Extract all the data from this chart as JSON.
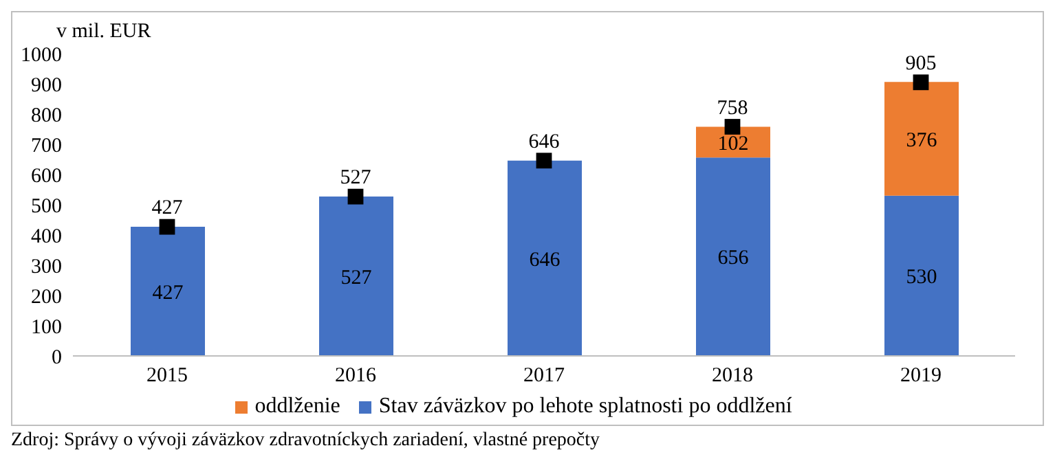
{
  "chart_data": {
    "type": "bar",
    "ylabel": "v mil. EUR",
    "categories": [
      "2015",
      "2016",
      "2017",
      "2018",
      "2019"
    ],
    "stacked": true,
    "data_labels": true,
    "legend": "bottom",
    "grid": false,
    "ylim": [
      0,
      1000
    ],
    "yticks": [
      0,
      100,
      200,
      300,
      400,
      500,
      600,
      700,
      800,
      900,
      1000
    ],
    "series": [
      {
        "name": "Stav záväzkov po lehote splatnosti po oddlžení",
        "color": "#4472c4",
        "values": [
          427,
          527,
          646,
          656,
          530
        ]
      },
      {
        "name": "oddlženie",
        "color": "#ed7d31",
        "values": [
          null,
          null,
          null,
          102,
          376
        ]
      },
      {
        "type": "scatter",
        "color": "#000000",
        "marker": "square",
        "values": [
          427,
          527,
          646,
          758,
          905
        ],
        "value_labels": [
          null,
          null,
          null,
          null,
          null
        ]
      }
    ],
    "totals": [
      "427",
      "527",
      "646",
      "758",
      "905"
    ],
    "annotations": [
      "Zdroj: Správy o vývoji záväzkov zdravotníckych zariadení, vlastné prepočty"
    ]
  }
}
